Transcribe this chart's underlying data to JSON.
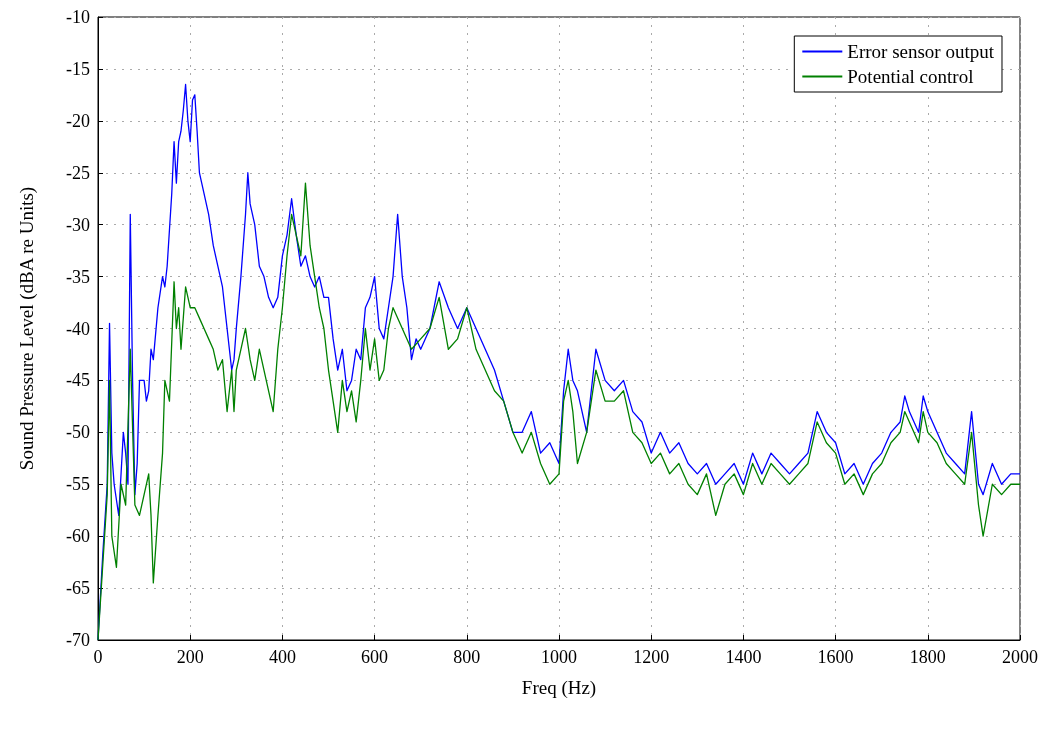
{
  "chart_data": {
    "type": "line",
    "xlabel": "Freq (Hz)",
    "ylabel": "Sound Pressure Level (dBA re Units)",
    "xlim": [
      0,
      2000
    ],
    "xticks": [
      0,
      200,
      400,
      600,
      800,
      1000,
      1200,
      1400,
      1600,
      1800,
      2000
    ],
    "ylim": [
      -70,
      -10
    ],
    "yticks": [
      -70,
      -65,
      -60,
      -55,
      -50,
      -45,
      -40,
      -35,
      -30,
      -25,
      -20,
      -15,
      -10
    ],
    "grid": true,
    "legend": "top right",
    "marker": "none",
    "line_style": "solid",
    "series": [
      {
        "name": "Error sensor output",
        "color": "#0000ff",
        "x": [
          0,
          10,
          20,
          25,
          30,
          35,
          45,
          55,
          60,
          65,
          70,
          75,
          80,
          85,
          90,
          100,
          105,
          110,
          115,
          120,
          130,
          140,
          145,
          150,
          160,
          165,
          170,
          175,
          180,
          185,
          190,
          195,
          200,
          205,
          210,
          215,
          220,
          225,
          240,
          250,
          260,
          270,
          280,
          290,
          295,
          300,
          310,
          320,
          325,
          330,
          340,
          350,
          360,
          370,
          380,
          390,
          400,
          410,
          420,
          430,
          440,
          450,
          460,
          470,
          480,
          490,
          500,
          510,
          520,
          530,
          540,
          550,
          560,
          570,
          580,
          590,
          600,
          610,
          620,
          630,
          640,
          650,
          660,
          670,
          680,
          690,
          700,
          720,
          740,
          760,
          780,
          800,
          820,
          840,
          860,
          880,
          900,
          920,
          940,
          960,
          980,
          1000,
          1010,
          1020,
          1030,
          1040,
          1060,
          1080,
          1100,
          1120,
          1140,
          1160,
          1180,
          1200,
          1220,
          1240,
          1260,
          1280,
          1300,
          1320,
          1340,
          1360,
          1380,
          1400,
          1420,
          1440,
          1460,
          1480,
          1500,
          1520,
          1540,
          1560,
          1580,
          1600,
          1620,
          1640,
          1660,
          1680,
          1700,
          1720,
          1740,
          1750,
          1760,
          1780,
          1790,
          1800,
          1820,
          1840,
          1860,
          1880,
          1895,
          1910,
          1920,
          1940,
          1960,
          1980,
          2000
        ],
        "values": [
          -70,
          -62,
          -55,
          -39.5,
          -52,
          -55,
          -58,
          -50,
          -52,
          -55,
          -29,
          -45,
          -56,
          -53,
          -45,
          -45,
          -47,
          -46,
          -42,
          -43,
          -38,
          -35,
          -36,
          -34,
          -27,
          -22,
          -26,
          -22,
          -21,
          -19,
          -16.5,
          -20,
          -22,
          -18,
          -17.5,
          -21,
          -25,
          -26,
          -29,
          -32,
          -34,
          -36,
          -40,
          -44,
          -43,
          -40,
          -35,
          -29,
          -25,
          -28,
          -30,
          -34,
          -35,
          -37,
          -38,
          -37,
          -33,
          -31,
          -27.5,
          -31,
          -34,
          -33,
          -35,
          -36,
          -35,
          -37,
          -37,
          -41,
          -44,
          -42,
          -46,
          -45,
          -42,
          -43,
          -38,
          -37,
          -35,
          -40,
          -41,
          -38,
          -35,
          -29,
          -35,
          -38,
          -43,
          -41,
          -42,
          -40,
          -35.5,
          -38,
          -40,
          -38,
          -40,
          -42,
          -44,
          -47,
          -50,
          -50,
          -48,
          -52,
          -51,
          -53,
          -46,
          -42,
          -45,
          -46,
          -50,
          -42,
          -45,
          -46,
          -45,
          -48,
          -49,
          -52,
          -50,
          -52,
          -51,
          -53,
          -54,
          -53,
          -55,
          -54,
          -53,
          -55,
          -52,
          -54,
          -52,
          -53,
          -54,
          -53,
          -52,
          -48,
          -50,
          -51,
          -54,
          -53,
          -55,
          -53,
          -52,
          -50,
          -49,
          -46.5,
          -48,
          -50,
          -46.5,
          -48,
          -50,
          -52,
          -53,
          -54,
          -48,
          -55,
          -56,
          -53,
          -55,
          -54,
          -54
        ]
      },
      {
        "name": "Potential control",
        "color": "#008000",
        "x": [
          0,
          10,
          20,
          25,
          30,
          40,
          50,
          60,
          70,
          80,
          90,
          100,
          110,
          115,
          120,
          130,
          140,
          145,
          155,
          165,
          170,
          175,
          180,
          190,
          200,
          210,
          220,
          230,
          240,
          250,
          260,
          270,
          280,
          290,
          295,
          300,
          310,
          320,
          330,
          340,
          350,
          360,
          370,
          380,
          390,
          400,
          410,
          420,
          430,
          440,
          450,
          460,
          470,
          480,
          490,
          500,
          510,
          520,
          530,
          540,
          550,
          560,
          570,
          580,
          590,
          600,
          610,
          620,
          630,
          640,
          660,
          680,
          700,
          720,
          740,
          760,
          780,
          800,
          820,
          840,
          860,
          880,
          900,
          920,
          940,
          960,
          980,
          1000,
          1010,
          1020,
          1030,
          1040,
          1060,
          1080,
          1100,
          1120,
          1140,
          1160,
          1180,
          1200,
          1220,
          1240,
          1260,
          1280,
          1300,
          1320,
          1340,
          1360,
          1380,
          1400,
          1420,
          1440,
          1460,
          1480,
          1500,
          1520,
          1540,
          1560,
          1580,
          1600,
          1620,
          1640,
          1660,
          1680,
          1700,
          1720,
          1740,
          1750,
          1760,
          1780,
          1790,
          1800,
          1820,
          1840,
          1860,
          1880,
          1895,
          1910,
          1920,
          1940,
          1960,
          1980,
          2000
        ],
        "values": [
          -70,
          -63,
          -56,
          -45,
          -60,
          -63,
          -55,
          -57,
          -42,
          -57,
          -58,
          -56,
          -54,
          -58,
          -64.5,
          -58,
          -52,
          -45,
          -47,
          -35.5,
          -40,
          -38,
          -42,
          -36,
          -38,
          -38,
          -39,
          -40,
          -41,
          -42,
          -44,
          -43,
          -48,
          -44,
          -48,
          -44,
          -42,
          -40,
          -43,
          -45,
          -42,
          -44,
          -46,
          -48,
          -42,
          -38,
          -33,
          -29,
          -31,
          -33,
          -26,
          -32,
          -35,
          -38,
          -40,
          -44,
          -47,
          -50,
          -45,
          -48,
          -46,
          -49,
          -45,
          -40,
          -44,
          -41,
          -45,
          -44,
          -40,
          -38,
          -40,
          -42,
          -41,
          -40,
          -37,
          -42,
          -41,
          -38,
          -42,
          -44,
          -46,
          -47,
          -50,
          -52,
          -50,
          -53,
          -55,
          -54,
          -47,
          -45,
          -48,
          -53,
          -50,
          -44,
          -47,
          -47,
          -46,
          -50,
          -51,
          -53,
          -52,
          -54,
          -53,
          -55,
          -56,
          -54,
          -58,
          -55,
          -54,
          -56,
          -53,
          -55,
          -53,
          -54,
          -55,
          -54,
          -53,
          -49,
          -51,
          -52,
          -55,
          -54,
          -56,
          -54,
          -53,
          -51,
          -50,
          -48,
          -49,
          -51,
          -48,
          -50,
          -51,
          -53,
          -54,
          -55,
          -50,
          -57,
          -60,
          -55,
          -56,
          -55,
          -55
        ]
      }
    ]
  }
}
